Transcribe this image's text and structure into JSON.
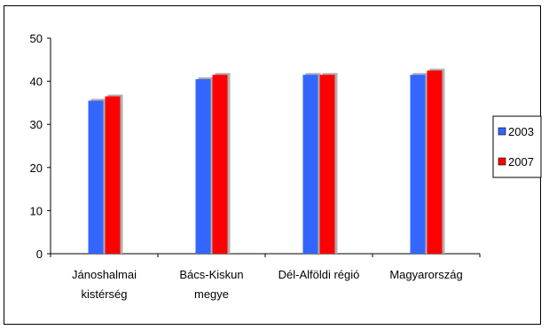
{
  "chart_data": {
    "type": "bar",
    "categories": [
      [
        "Jánoshalmai",
        "kistérség"
      ],
      [
        "Bács-Kiskun",
        "megye"
      ],
      [
        "Dél-Alföldi régió"
      ],
      [
        "Magyarország"
      ]
    ],
    "series": [
      {
        "name": "2003",
        "color": "#3366ff",
        "values": [
          35.5,
          40.5,
          41.5,
          41.5
        ]
      },
      {
        "name": "2007",
        "color": "#ff0000",
        "values": [
          36.5,
          41.5,
          41.5,
          42.5
        ]
      }
    ],
    "ylim": [
      0,
      50
    ],
    "yticks": [
      0,
      10,
      20,
      30,
      40,
      50
    ],
    "grid": false,
    "legend_position": "right"
  }
}
